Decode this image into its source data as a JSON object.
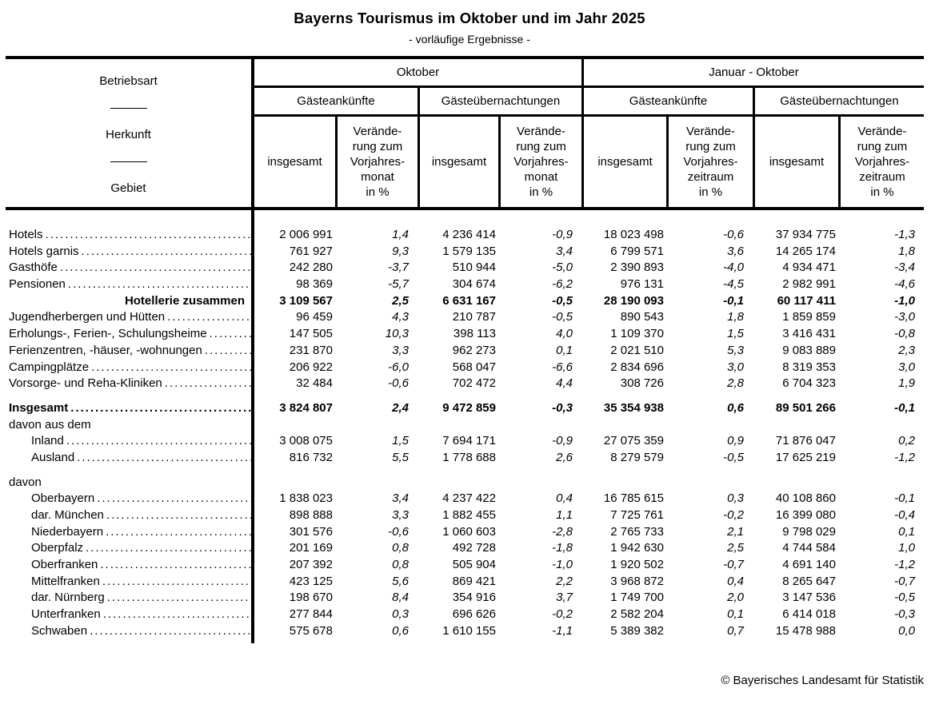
{
  "page": {
    "title": "Bayerns Tourismus im Oktober und im Jahr 2025",
    "subtitle": "- vorläufige Ergebnisse -",
    "footer_credit": "© Bayerisches Landesamt für Statistik"
  },
  "table": {
    "stub": {
      "labels": [
        "Betriebsart",
        "Herkunft",
        "Gebiet"
      ]
    },
    "periods": [
      {
        "label": "Oktober",
        "groups": [
          {
            "label": "Gästeankünfte"
          },
          {
            "label": "Gästeübernachtungen"
          }
        ],
        "total_label": "insgesamt",
        "change_label": "Verände-\nrung zum\nVorjahres-\nmonat\nin %"
      },
      {
        "label": "Januar - Oktober",
        "groups": [
          {
            "label": "Gästeankünfte"
          },
          {
            "label": "Gästeübernachtungen"
          }
        ],
        "total_label": "insgesamt",
        "change_label": "Verände-\nrung zum\nVorjahres-\nzeitraum\nin %"
      }
    ],
    "rows": [
      {
        "label": "Hotels",
        "indent": 0,
        "bold": false,
        "dots": true,
        "values": [
          "2 006 991",
          "1,4",
          "4 236 414",
          "-0,9",
          "18 023 498",
          "-0,6",
          "37 934 775",
          "-1,3"
        ]
      },
      {
        "label": "Hotels garnis",
        "indent": 0,
        "bold": false,
        "dots": true,
        "values": [
          "761 927",
          "9,3",
          "1 579 135",
          "3,4",
          "6 799 571",
          "3,6",
          "14 265 174",
          "1,8"
        ]
      },
      {
        "label": "Gasthöfe",
        "indent": 0,
        "bold": false,
        "dots": true,
        "values": [
          "242 280",
          "-3,7",
          "510 944",
          "-5,0",
          "2 390 893",
          "-4,0",
          "4 934 471",
          "-3,4"
        ]
      },
      {
        "label": "Pensionen",
        "indent": 0,
        "bold": false,
        "dots": true,
        "values": [
          "98 369",
          "-5,7",
          "304 674",
          "-6,2",
          "976 131",
          "-4,5",
          "2 982 991",
          "-4,6"
        ]
      },
      {
        "label": "Hotellerie zusammen",
        "indent": 0,
        "bold": true,
        "dots": false,
        "align": "right",
        "values": [
          "3 109 567",
          "2,5",
          "6 631 167",
          "-0,5",
          "28 190 093",
          "-0,1",
          "60 117 411",
          "-1,0"
        ]
      },
      {
        "label": "Jugendherbergen und Hütten",
        "indent": 0,
        "bold": false,
        "dots": true,
        "values": [
          "96 459",
          "4,3",
          "210 787",
          "-0,5",
          "890 543",
          "1,8",
          "1 859 859",
          "-3,0"
        ]
      },
      {
        "label": "Erholungs-, Ferien-, Schulungsheime",
        "indent": 0,
        "bold": false,
        "dots": true,
        "values": [
          "147 505",
          "10,3",
          "398 113",
          "4,0",
          "1 109 370",
          "1,5",
          "3 416 431",
          "-0,8"
        ]
      },
      {
        "label": "Ferienzentren, -häuser, -wohnungen",
        "indent": 0,
        "bold": false,
        "dots": true,
        "values": [
          "231 870",
          "3,3",
          "962 273",
          "0,1",
          "2 021 510",
          "5,3",
          "9 083 889",
          "2,3"
        ]
      },
      {
        "label": "Campingplätze",
        "indent": 0,
        "bold": false,
        "dots": true,
        "values": [
          "206 922",
          "-6,0",
          "568 047",
          "-6,6",
          "2 834 696",
          "3,0",
          "8 319 353",
          "3,0"
        ]
      },
      {
        "label": "Vorsorge- und Reha-Kliniken",
        "indent": 0,
        "bold": false,
        "dots": true,
        "values": [
          "32 484",
          "-0,6",
          "702 472",
          "4,4",
          "308 726",
          "2,8",
          "6 704 323",
          "1,9"
        ]
      },
      {
        "label": "Insgesamt",
        "indent": 0,
        "bold": true,
        "dots": true,
        "gap_before": true,
        "values": [
          "3 824 807",
          "2,4",
          "9 472 859",
          "-0,3",
          "35 354 938",
          "0,6",
          "89 501 266",
          "-0,1"
        ]
      },
      {
        "label": "davon aus dem",
        "indent": 0,
        "bold": false,
        "dots": false,
        "values": []
      },
      {
        "label": "Inland",
        "indent": 1,
        "bold": false,
        "dots": true,
        "values": [
          "3 008 075",
          "1,5",
          "7 694 171",
          "-0,9",
          "27 075 359",
          "0,9",
          "71 876 047",
          "0,2"
        ]
      },
      {
        "label": "Ausland",
        "indent": 1,
        "bold": false,
        "dots": true,
        "values": [
          "816 732",
          "5,5",
          "1 778 688",
          "2,6",
          "8 279 579",
          "-0,5",
          "17 625 219",
          "-1,2"
        ]
      },
      {
        "label": "davon",
        "indent": 0,
        "bold": false,
        "dots": false,
        "gap_before": true,
        "values": []
      },
      {
        "label": "Oberbayern",
        "indent": 1,
        "bold": false,
        "dots": true,
        "values": [
          "1 838 023",
          "3,4",
          "4 237 422",
          "0,4",
          "16 785 615",
          "0,3",
          "40 108 860",
          "-0,1"
        ]
      },
      {
        "label": "dar. München",
        "indent": 1,
        "bold": false,
        "dots": true,
        "values": [
          "898 888",
          "3,3",
          "1 882 455",
          "1,1",
          "7 725 761",
          "-0,2",
          "16 399 080",
          "-0,4"
        ]
      },
      {
        "label": "Niederbayern",
        "indent": 1,
        "bold": false,
        "dots": true,
        "values": [
          "301 576",
          "-0,6",
          "1 060 603",
          "-2,8",
          "2 765 733",
          "2,1",
          "9 798 029",
          "0,1"
        ]
      },
      {
        "label": "Oberpfalz",
        "indent": 1,
        "bold": false,
        "dots": true,
        "values": [
          "201 169",
          "0,8",
          "492 728",
          "-1,8",
          "1 942 630",
          "2,5",
          "4 744 584",
          "1,0"
        ]
      },
      {
        "label": "Oberfranken",
        "indent": 1,
        "bold": false,
        "dots": true,
        "values": [
          "207 392",
          "0,8",
          "505 904",
          "-1,0",
          "1 920 502",
          "-0,7",
          "4 691 140",
          "-1,2"
        ]
      },
      {
        "label": "Mittelfranken",
        "indent": 1,
        "bold": false,
        "dots": true,
        "values": [
          "423 125",
          "5,6",
          "869 421",
          "2,2",
          "3 968 872",
          "0,4",
          "8 265 647",
          "-0,7"
        ]
      },
      {
        "label": "dar. Nürnberg",
        "indent": 1,
        "bold": false,
        "dots": true,
        "values": [
          "198 670",
          "8,4",
          "354 916",
          "3,7",
          "1 749 700",
          "2,0",
          "3 147 536",
          "-0,5"
        ]
      },
      {
        "label": "Unterfranken",
        "indent": 1,
        "bold": false,
        "dots": true,
        "values": [
          "277 844",
          "0,3",
          "696 626",
          "-0,2",
          "2 582 204",
          "0,1",
          "6 414 018",
          "-0,3"
        ]
      },
      {
        "label": "Schwaben",
        "indent": 1,
        "bold": false,
        "dots": true,
        "values": [
          "575 678",
          "0,6",
          "1 610 155",
          "-1,1",
          "5 389 382",
          "0,7",
          "15 478 988",
          "0,0"
        ]
      }
    ]
  }
}
